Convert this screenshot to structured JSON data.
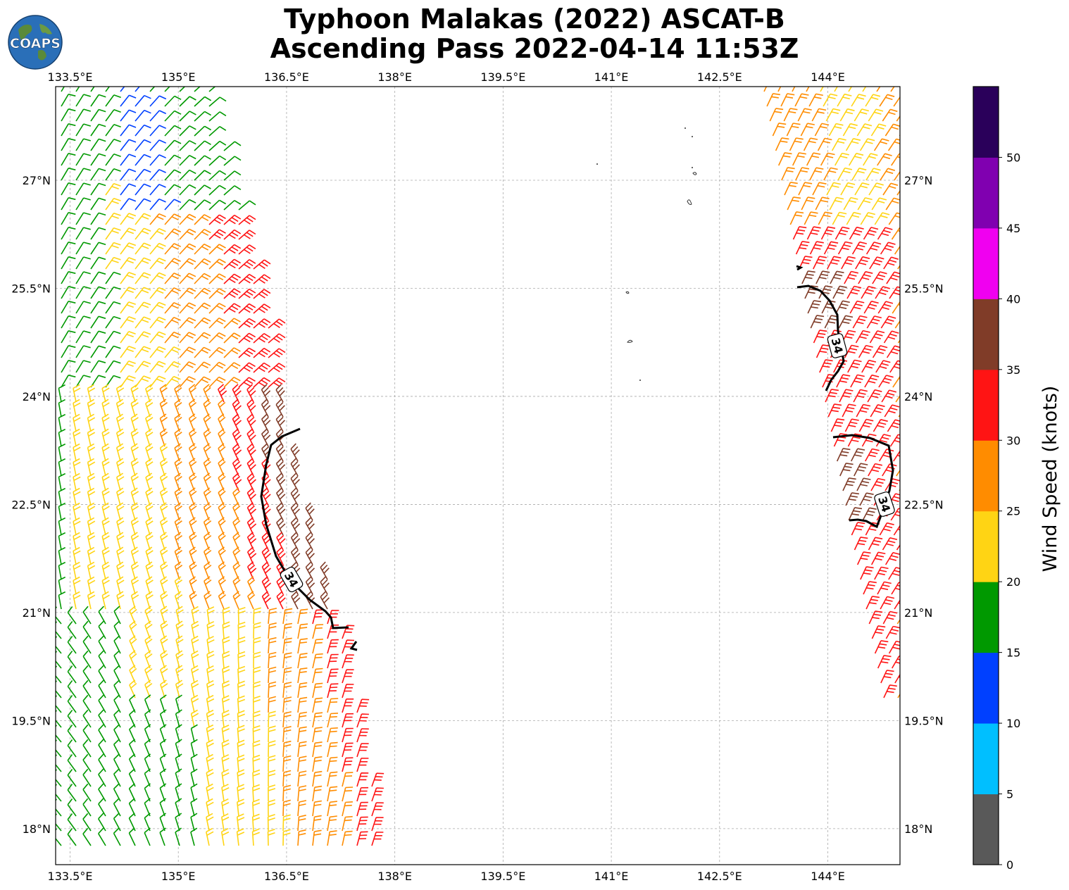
{
  "title": {
    "line1": "Typhoon Malakas (2022) ASCAT-B",
    "line2": "Ascending Pass 2022-04-14 11:53Z"
  },
  "logo": {
    "text": "COAPS"
  },
  "map": {
    "lon_ticks": [
      "133.5°E",
      "135°E",
      "136.5°E",
      "138°E",
      "139.5°E",
      "141°E",
      "142.5°E",
      "144°E"
    ],
    "lon_values": [
      133.5,
      135,
      136.5,
      138,
      139.5,
      141,
      142.5,
      144
    ],
    "lat_ticks": [
      "27°N",
      "25.5°N",
      "24°N",
      "22.5°N",
      "21°N",
      "19.5°N",
      "18°N"
    ],
    "lat_values": [
      27,
      25.5,
      24,
      22.5,
      21,
      19.5,
      18
    ],
    "lon_range": [
      133.3,
      145.0
    ],
    "lat_range": [
      17.5,
      28.3
    ],
    "contour_label": "34"
  },
  "colorbar": {
    "label": "Wind Speed (knots)",
    "ticks": [
      "0",
      "5",
      "10",
      "15",
      "20",
      "25",
      "30",
      "35",
      "40",
      "45",
      "50"
    ],
    "colors": [
      "#595959",
      "#00bfff",
      "#0040ff",
      "#009900",
      "#ffd414",
      "#ff8c00",
      "#ff1414",
      "#803c28",
      "#f000f0",
      "#8000b0",
      "#2a005a"
    ]
  }
}
